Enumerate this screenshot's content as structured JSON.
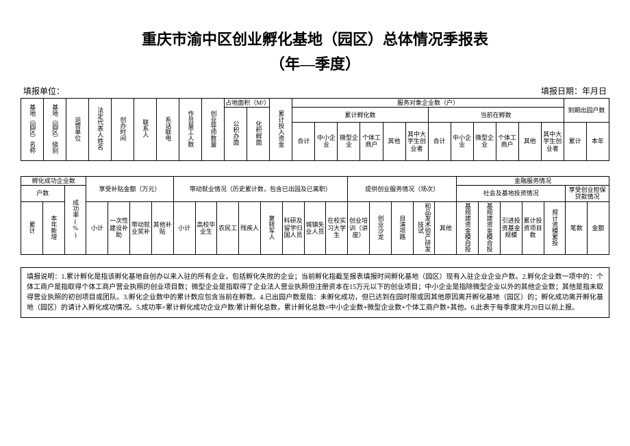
{
  "title": "重庆市渝中区创业孵化基地（园区）总体情况季报表",
  "subtitle": "（年—季度）",
  "meta": {
    "unit_label": "填报单位：",
    "date_label": "填报日期：年月日"
  },
  "t1": {
    "c1": "基地（园区）名称",
    "c2": "基地（园区）级别",
    "c3": "运营单位",
    "c4": "法定代表人姓名",
    "c5": "创办时间",
    "c6": "联系人",
    "c7": "系话联电",
    "c8": "作员量工人数",
    "c9": "创业导师数量",
    "area": "占地面积（M²）",
    "area1": "公积办面",
    "area2": "化积孵面",
    "c10": "累计投入资金",
    "svc": "服务对象企业数（户）",
    "cum": "累计孵化数",
    "cur": "当前在孵数",
    "hj": "合计",
    "zx": "中小企业",
    "wx": "微型企业",
    "gt": "个体工商户",
    "qt": "其他",
    "dx": "其中大学生创业者",
    "exit": "到期出园户数",
    "lj": "累计",
    "bn": "本年"
  },
  "t2": {
    "succ": "孵化成功企业数",
    "hushu": "户数",
    "lj": "累计",
    "bnxz": "本年新增",
    "cgl": "成功率(%)",
    "subsidy": "享受补贴金额（万元）",
    "xj": "小计",
    "s1": "一次性建设补助",
    "s2": "带动就业奖补",
    "s3": "其他补贴",
    "employ": "带动就业情况（历史累计数，包含已出园及已离职）",
    "e1": "高校毕业生",
    "e2": "农民工",
    "e3": "残疾人",
    "e4": "复转军人",
    "e5": "科研及留学归国人员",
    "e6": "城镇失业人员",
    "e7": "在校实习大学生",
    "svc": "提供创业服务情况（场次）",
    "v1": "创业培训（讲座）",
    "v2": "创业沙龙",
    "v3": "目演项路",
    "v4": "和品发术验产研发技试",
    "v5": "其他",
    "fin": "金融服务情况",
    "fin1": "社会及基地投资情况",
    "fin2": "享受创业担保贷款情况",
    "f1": "基规建资金模自投",
    "f2": "基规建资金模合投",
    "f3": "引进投资基金规模",
    "f4": "累计投资项目数",
    "f5": "规计资模累投",
    "f6": "笔数",
    "f7": "金额"
  },
  "notes": "填报说明：1.累计孵化是指该孵化基地自创办以来入驻的所有企业，包括孵化失败的企业；当前孵化指截至报表填报时间孵化基地（园区）现有入驻企业企业户数。2.孵化企业数一项中的：个体工商户是指取得个体工商户营业执照的创业项目数；微型企业是指取得了企业法人营业执照但注册资本在15万元以下的创业项目；中小企业是指除微型企业以外的其他企业数；其他是指未取得营业执照的初创项目或团队。3.孵化企业数中的累计数应包含当前在孵数。4.已出园户数是指：未孵化成功，但已达到在园时限或因其他原因离开孵化基地（园区）的；孵化成功离开孵化基地（园区）的请计入孵化成功情况。5.成功率=累计孵化成功企业户数/累计孵化总数，累计孵化总数=中小企业数+微型企业数+个体工商户数+其他。6.此表于每季度末月20日以前上报。"
}
